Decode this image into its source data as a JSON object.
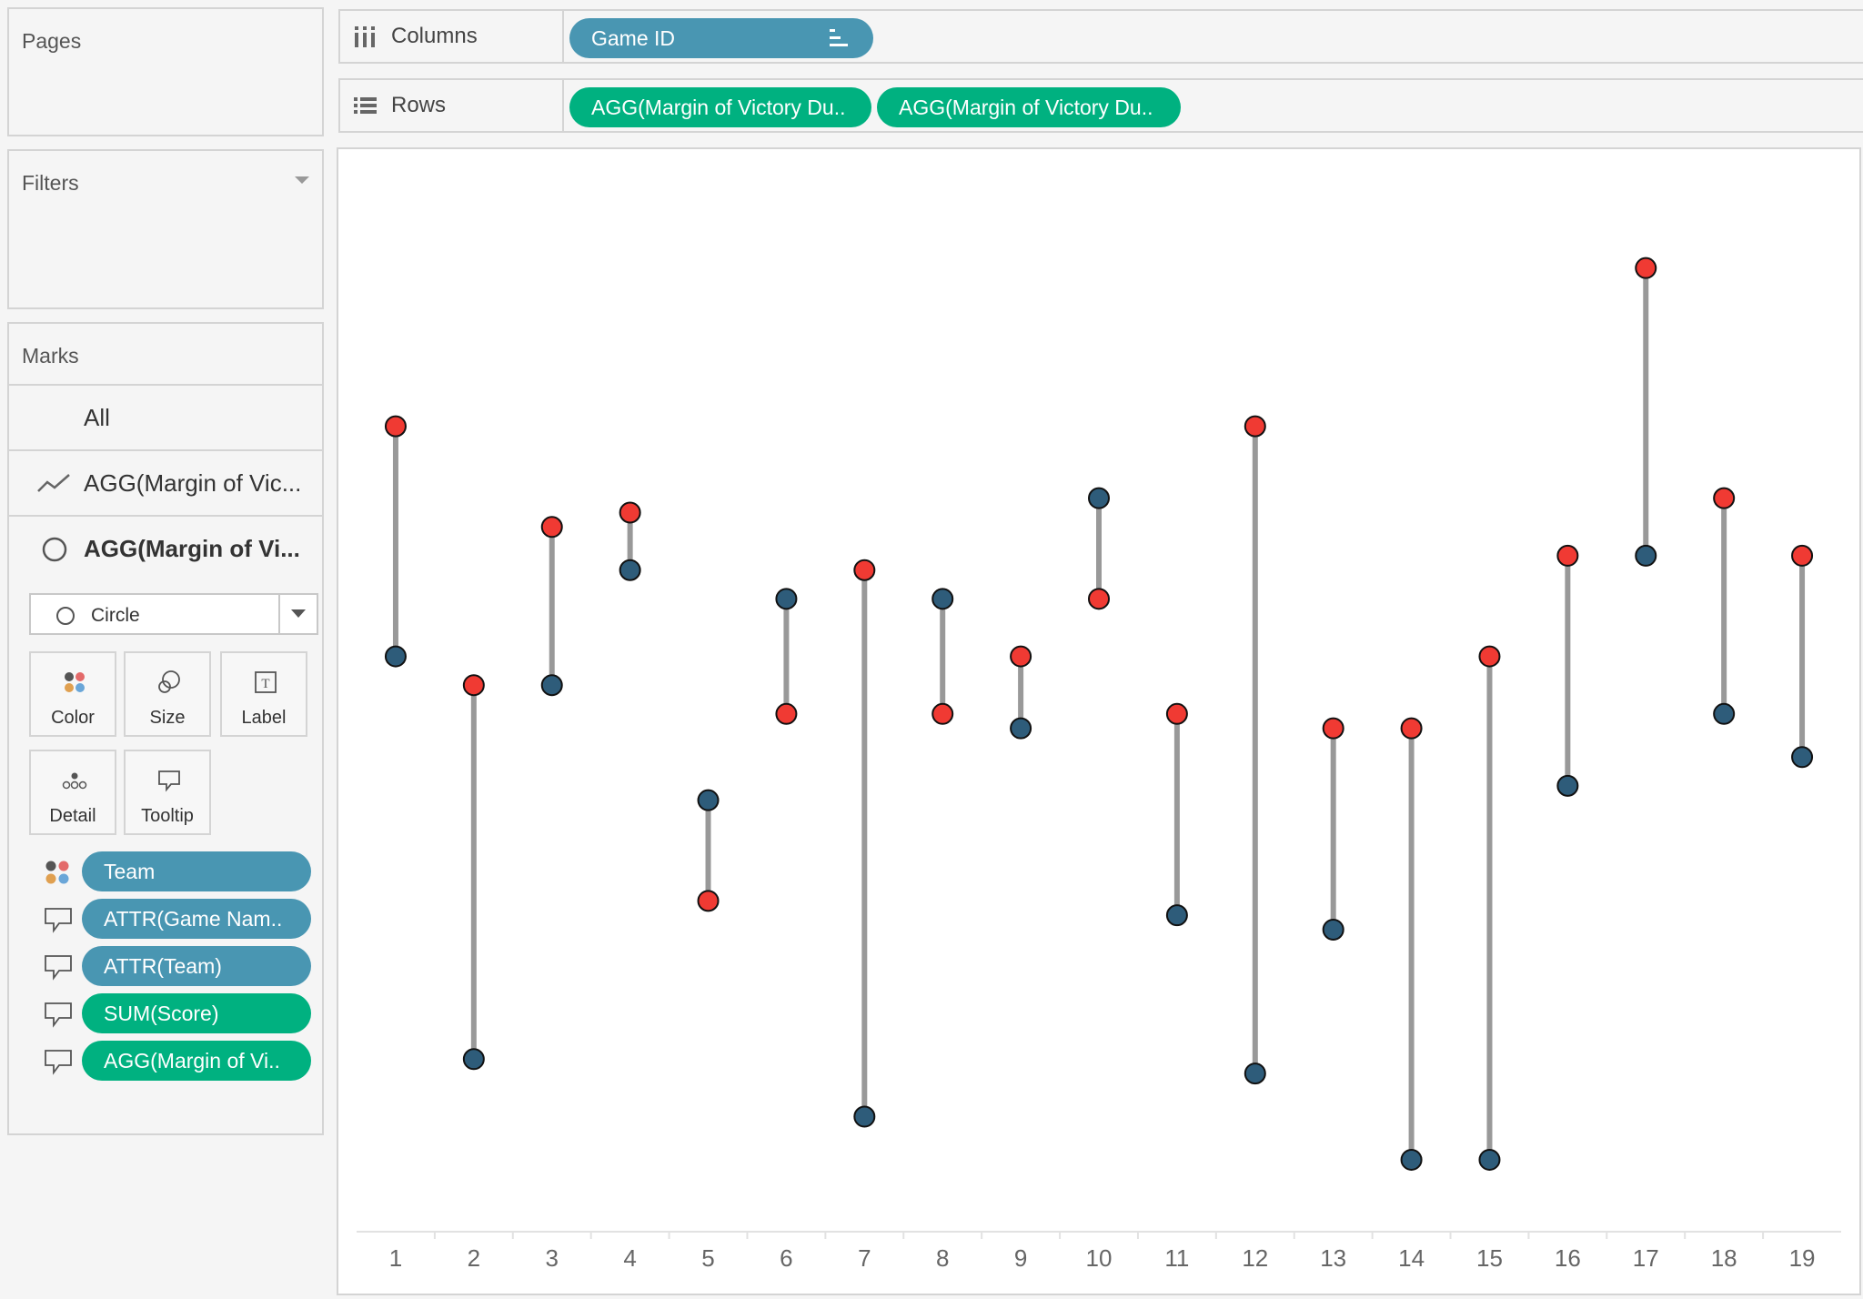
{
  "pages": {
    "title": "Pages"
  },
  "filters": {
    "title": "Filters"
  },
  "columns_shelf": {
    "label": "Columns",
    "pills": [
      "Game ID"
    ]
  },
  "rows_shelf": {
    "label": "Rows",
    "pills": [
      "AGG(Margin of Victory Du..",
      "AGG(Margin of Victory Du.."
    ]
  },
  "marks": {
    "title": "Marks",
    "cards": [
      "All",
      "AGG(Margin of Vic...",
      "AGG(Margin of Vi..."
    ],
    "mark_type": "Circle",
    "buttons": [
      "Color",
      "Size",
      "Label",
      "Detail",
      "Tooltip"
    ],
    "fields": [
      {
        "label": "Team",
        "role": "color",
        "kind": "dimension"
      },
      {
        "label": "ATTR(Game Nam..",
        "role": "tooltip",
        "kind": "dimension"
      },
      {
        "label": "ATTR(Team)",
        "role": "tooltip",
        "kind": "dimension"
      },
      {
        "label": "SUM(Score)",
        "role": "tooltip",
        "kind": "measure"
      },
      {
        "label": "AGG(Margin of Vi..",
        "role": "tooltip",
        "kind": "measure"
      }
    ]
  },
  "colors": {
    "dimension_pill": "#4996b2",
    "measure_pill": "#00b180",
    "red_point": "#f03a33",
    "blue_point": "#2e5c7a",
    "connector": "#999999"
  },
  "chart_data": {
    "type": "scatter",
    "title": "",
    "xlabel": "",
    "ylabel": "",
    "categories": [
      "1",
      "2",
      "3",
      "4",
      "5",
      "6",
      "7",
      "8",
      "9",
      "10",
      "11",
      "12",
      "13",
      "14",
      "15",
      "16",
      "17",
      "18",
      "19"
    ],
    "series": [
      {
        "values": [
          2.8,
          1.0,
          2.1,
          2.2,
          -0.5,
          0.8,
          1.8,
          0.8,
          1.2,
          1.6,
          0.8,
          2.8,
          0.7,
          0.7,
          1.2,
          1.9,
          3.9,
          2.3,
          1.9
        ]
      },
      {
        "values": [
          1.2,
          -1.6,
          1.0,
          1.8,
          0.2,
          1.6,
          -2.0,
          1.6,
          0.7,
          2.3,
          -0.6,
          -1.7,
          -0.7,
          -2.3,
          -2.3,
          0.3,
          1.9,
          0.8,
          0.5
        ]
      }
    ],
    "connectors": true,
    "grid": false,
    "ylim": [
      -2.8,
      4.6
    ]
  }
}
